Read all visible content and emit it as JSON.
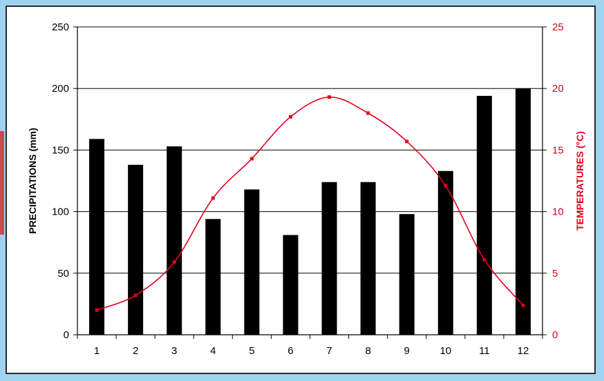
{
  "chart_data": {
    "type": "bar",
    "categories": [
      "1",
      "2",
      "3",
      "4",
      "5",
      "6",
      "7",
      "8",
      "9",
      "10",
      "11",
      "12"
    ],
    "series": [
      {
        "type": "bar",
        "axis": "left",
        "values": [
          159,
          138,
          153,
          94,
          118,
          81,
          124,
          124,
          98,
          133,
          194,
          200
        ],
        "color": "#000000"
      },
      {
        "type": "line",
        "axis": "right",
        "values": [
          2.0,
          3.2,
          5.9,
          11.1,
          14.3,
          17.7,
          19.3,
          18.0,
          15.7,
          12.1,
          6.1,
          2.4
        ],
        "color": "#e3001b"
      }
    ],
    "ylabel": "PRECIPITATIONS (mm)",
    "y2label": "TEMPERATURES (°C)",
    "ylim": [
      0,
      250
    ],
    "y2lim": [
      0,
      25
    ],
    "yticks": [
      0,
      50,
      100,
      150,
      200,
      250
    ],
    "y2ticks": [
      0,
      5,
      10,
      15,
      20,
      25
    ],
    "grid": true
  },
  "colors": {
    "right_axis": "#e3001b",
    "bars": "#000000",
    "background": "#9fd3f0"
  }
}
